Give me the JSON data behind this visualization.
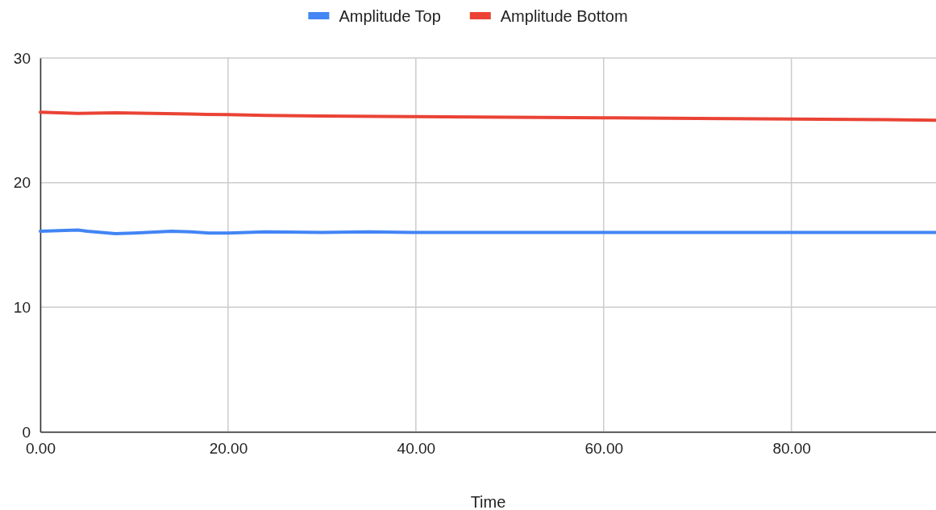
{
  "chart_data": {
    "type": "line",
    "xlabel": "Time",
    "xlim": [
      0,
      95.4
    ],
    "ylim": [
      0,
      30
    ],
    "xticks": [
      {
        "value": 0,
        "label": "0.00"
      },
      {
        "value": 20,
        "label": "20.00"
      },
      {
        "value": 40,
        "label": "40.00"
      },
      {
        "value": 60,
        "label": "60.00"
      },
      {
        "value": 80,
        "label": "80.00"
      }
    ],
    "yticks": [
      0,
      10,
      20,
      30
    ],
    "grid": true,
    "legend": "top",
    "series": [
      {
        "name": "Amplitude Top",
        "color": "#4285f4",
        "x": [
          0,
          4,
          5,
          8,
          10,
          14,
          16,
          18,
          20,
          24,
          30,
          35,
          40,
          50,
          60,
          70,
          80,
          90,
          95.4
        ],
        "values": [
          16.1,
          16.2,
          16.1,
          15.9,
          15.95,
          16.1,
          16.05,
          15.95,
          15.95,
          16.05,
          16.0,
          16.05,
          16.0,
          16.0,
          16.0,
          16.0,
          16.0,
          16.0,
          16.0
        ]
      },
      {
        "name": "Amplitude Bottom",
        "color": "#ea4335",
        "x": [
          0,
          4,
          8,
          12,
          16,
          20,
          24,
          30,
          40,
          50,
          60,
          70,
          80,
          90,
          95.4
        ],
        "values": [
          25.65,
          25.55,
          25.6,
          25.55,
          25.5,
          25.45,
          25.4,
          25.35,
          25.3,
          25.25,
          25.2,
          25.15,
          25.1,
          25.05,
          25.0
        ]
      }
    ]
  }
}
